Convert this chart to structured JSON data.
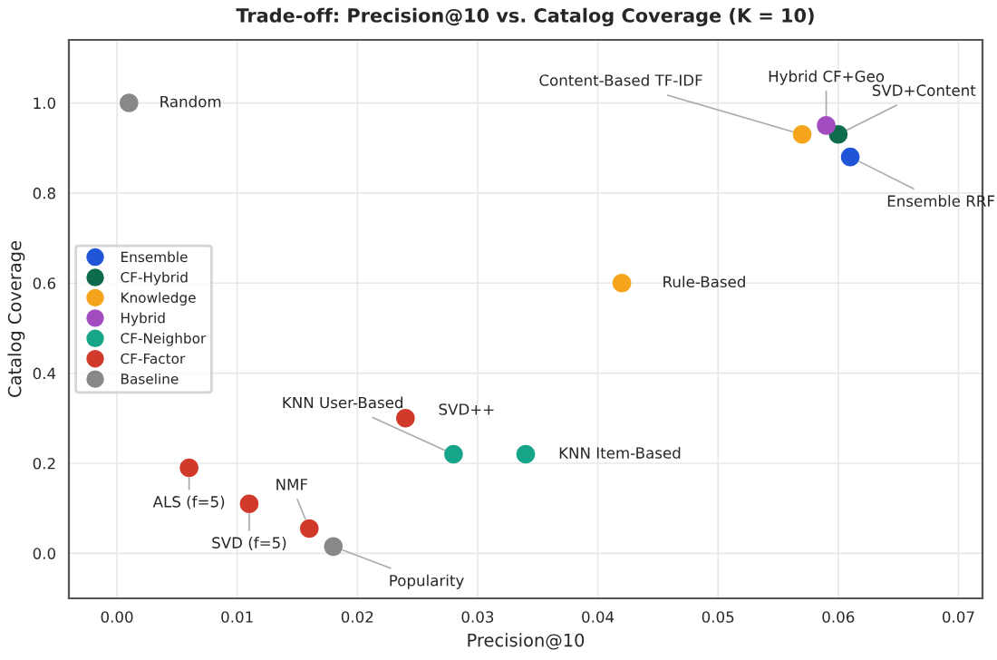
{
  "chart_data": {
    "type": "scatter",
    "title": "Trade-off: Precision@10 vs. Catalog Coverage (K = 10)",
    "xlabel": "Precision@10",
    "ylabel": "Catalog Coverage",
    "series": [
      {
        "name": "Ensemble",
        "color": "#1f55d6",
        "x": [
          0.061
        ],
        "values": [
          0.88
        ]
      },
      {
        "name": "CF-Hybrid",
        "color": "#0e6b4e",
        "x": [
          0.06
        ],
        "values": [
          0.93
        ]
      },
      {
        "name": "Knowledge",
        "color": "#f5a41c",
        "x": [
          0.057,
          0.042
        ],
        "values": [
          0.93,
          0.6
        ]
      },
      {
        "name": "Hybrid",
        "color": "#a24cc0",
        "x": [
          0.059
        ],
        "values": [
          0.95
        ]
      },
      {
        "name": "CF-Neighbor",
        "color": "#17a58a",
        "x": [
          0.028,
          0.034
        ],
        "values": [
          0.22,
          0.22
        ]
      },
      {
        "name": "CF-Factor",
        "color": "#d13a2b",
        "x": [
          0.024,
          0.006,
          0.011,
          0.016
        ],
        "values": [
          0.3,
          0.19,
          0.11,
          0.055
        ]
      },
      {
        "name": "Baseline",
        "color": "#888888",
        "x": [
          0.001,
          0.018
        ],
        "values": [
          1.0,
          0.015
        ]
      }
    ],
    "annotations": [
      {
        "text": "Random",
        "x": 0.001,
        "y": 1.0
      },
      {
        "text": "Content-Based TF-IDF",
        "x": 0.057,
        "y": 0.93
      },
      {
        "text": "Hybrid CF+Geo",
        "x": 0.059,
        "y": 0.95
      },
      {
        "text": "SVD+Content",
        "x": 0.06,
        "y": 0.93
      },
      {
        "text": "Ensemble RRF",
        "x": 0.061,
        "y": 0.88
      },
      {
        "text": "Rule-Based",
        "x": 0.042,
        "y": 0.6
      },
      {
        "text": "SVD++",
        "x": 0.024,
        "y": 0.3
      },
      {
        "text": "KNN User-Based",
        "x": 0.028,
        "y": 0.22
      },
      {
        "text": "KNN Item-Based",
        "x": 0.034,
        "y": 0.22
      },
      {
        "text": "ALS (f=5)",
        "x": 0.006,
        "y": 0.19
      },
      {
        "text": "SVD (f=5)",
        "x": 0.011,
        "y": 0.11
      },
      {
        "text": "NMF",
        "x": 0.016,
        "y": 0.055
      },
      {
        "text": "Popularity",
        "x": 0.018,
        "y": 0.015
      }
    ],
    "xlim": [
      -0.004,
      0.072
    ],
    "ylim": [
      -0.1,
      1.14
    ],
    "xticks": [
      {
        "value": 0,
        "label": "0.00"
      },
      {
        "value": 0.01,
        "label": "0.01"
      },
      {
        "value": 0.02,
        "label": "0.02"
      },
      {
        "value": 0.03,
        "label": "0.03"
      },
      {
        "value": 0.04,
        "label": "0.04"
      },
      {
        "value": 0.05,
        "label": "0.05"
      },
      {
        "value": 0.06,
        "label": "0.06"
      },
      {
        "value": 0.07,
        "label": "0.07"
      }
    ],
    "yticks": [
      {
        "value": 0,
        "label": "0.0"
      },
      {
        "value": 0.2,
        "label": "0.2"
      },
      {
        "value": 0.4,
        "label": "0.4"
      },
      {
        "value": 0.6,
        "label": "0.6"
      },
      {
        "value": 0.8,
        "label": "0.8"
      },
      {
        "value": 1.0,
        "label": "1.0"
      }
    ],
    "grid": true,
    "legend": "left",
    "marker": "circle"
  }
}
